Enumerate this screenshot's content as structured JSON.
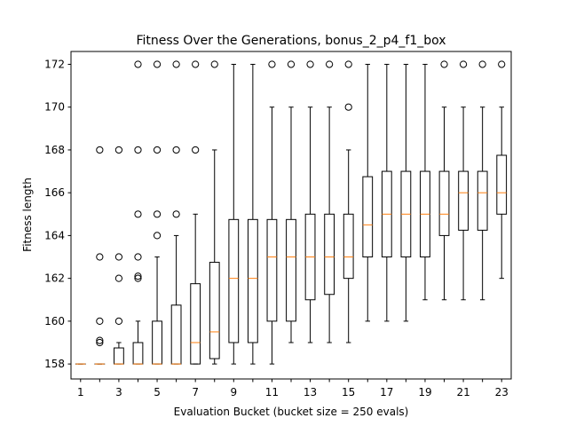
{
  "chart_data": {
    "type": "box",
    "title": "Fitness Over the Generations, bonus_2_p4_f1_box",
    "xlabel": "Evaluation Bucket (bucket size = 250 evals)",
    "ylabel": "Fitness length",
    "ylim": [
      157.3,
      172.6
    ],
    "yticks": [
      158,
      160,
      162,
      164,
      166,
      168,
      170,
      172
    ],
    "xticks": [
      1,
      3,
      5,
      7,
      9,
      11,
      13,
      15,
      17,
      19,
      21,
      23
    ],
    "grid": false,
    "colors": {
      "box": "#000000",
      "median": "#ff7f0e",
      "flier": "#000000"
    },
    "boxes": [
      {
        "x": 1,
        "whislo": 158,
        "q1": 158,
        "med": 158,
        "q3": 158,
        "whishi": 158,
        "fliers": []
      },
      {
        "x": 2,
        "whislo": 158,
        "q1": 158,
        "med": 158,
        "q3": 158,
        "whishi": 158,
        "fliers": [
          159,
          159.1,
          160,
          163,
          168
        ]
      },
      {
        "x": 3,
        "whislo": 158,
        "q1": 158,
        "med": 158,
        "q3": 158.75,
        "whishi": 159,
        "fliers": [
          160,
          162,
          163,
          168
        ]
      },
      {
        "x": 4,
        "whislo": 158,
        "q1": 158,
        "med": 158,
        "q3": 159,
        "whishi": 160,
        "fliers": [
          162,
          162.1,
          163,
          165,
          168,
          172
        ]
      },
      {
        "x": 5,
        "whislo": 158,
        "q1": 158,
        "med": 158,
        "q3": 160,
        "whishi": 163,
        "fliers": [
          164,
          165,
          168,
          172
        ]
      },
      {
        "x": 6,
        "whislo": 158,
        "q1": 158,
        "med": 158,
        "q3": 160.75,
        "whishi": 164,
        "fliers": [
          165,
          168,
          172
        ]
      },
      {
        "x": 7,
        "whislo": 158,
        "q1": 158,
        "med": 159,
        "q3": 161.75,
        "whishi": 165,
        "fliers": [
          168,
          172
        ]
      },
      {
        "x": 8,
        "whislo": 158,
        "q1": 158.25,
        "med": 159.5,
        "q3": 162.75,
        "whishi": 168,
        "fliers": [
          172
        ]
      },
      {
        "x": 9,
        "whislo": 158,
        "q1": 159,
        "med": 162,
        "q3": 164.75,
        "whishi": 172,
        "fliers": []
      },
      {
        "x": 10,
        "whislo": 158,
        "q1": 159,
        "med": 162,
        "q3": 164.75,
        "whishi": 172,
        "fliers": []
      },
      {
        "x": 11,
        "whislo": 158,
        "q1": 160,
        "med": 163,
        "q3": 164.75,
        "whishi": 170,
        "fliers": [
          172
        ]
      },
      {
        "x": 12,
        "whislo": 159,
        "q1": 160,
        "med": 163,
        "q3": 164.75,
        "whishi": 170,
        "fliers": [
          172
        ]
      },
      {
        "x": 13,
        "whislo": 159,
        "q1": 161,
        "med": 163,
        "q3": 165,
        "whishi": 170,
        "fliers": [
          172
        ]
      },
      {
        "x": 14,
        "whislo": 159,
        "q1": 161.25,
        "med": 163,
        "q3": 165,
        "whishi": 170,
        "fliers": [
          172
        ]
      },
      {
        "x": 15,
        "whislo": 159,
        "q1": 162,
        "med": 163,
        "q3": 165,
        "whishi": 168,
        "fliers": [
          170,
          172
        ]
      },
      {
        "x": 16,
        "whislo": 160,
        "q1": 163,
        "med": 164.5,
        "q3": 166.75,
        "whishi": 172,
        "fliers": []
      },
      {
        "x": 17,
        "whislo": 160,
        "q1": 163,
        "med": 165,
        "q3": 167,
        "whishi": 172,
        "fliers": []
      },
      {
        "x": 18,
        "whislo": 160,
        "q1": 163,
        "med": 165,
        "q3": 167,
        "whishi": 172,
        "fliers": []
      },
      {
        "x": 19,
        "whislo": 161,
        "q1": 163,
        "med": 165,
        "q3": 167,
        "whishi": 172,
        "fliers": []
      },
      {
        "x": 20,
        "whislo": 161,
        "q1": 164,
        "med": 165,
        "q3": 167,
        "whishi": 170,
        "fliers": [
          172
        ]
      },
      {
        "x": 21,
        "whislo": 161,
        "q1": 164.25,
        "med": 166,
        "q3": 167,
        "whishi": 170,
        "fliers": [
          172
        ]
      },
      {
        "x": 22,
        "whislo": 161,
        "q1": 164.25,
        "med": 166,
        "q3": 167,
        "whishi": 170,
        "fliers": [
          172
        ]
      },
      {
        "x": 23,
        "whislo": 162,
        "q1": 165,
        "med": 166,
        "q3": 167.75,
        "whishi": 170,
        "fliers": [
          172
        ]
      }
    ]
  }
}
